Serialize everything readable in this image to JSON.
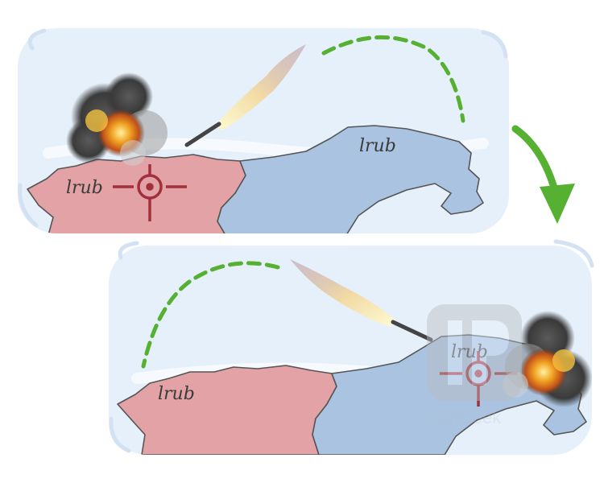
{
  "illustration": {
    "top_panel": {
      "left_country_label": "lrub",
      "right_country_label": "lrub"
    },
    "bottom_panel": {
      "left_country_label": "lrub",
      "right_country_label": "lrub"
    },
    "watermark": {
      "text": "LanGeek"
    },
    "colors": {
      "panel_bg": "#e6f0fa",
      "attacker_country": "#e3a3a6",
      "target_country": "#a9c3e1",
      "crosshair": "#a0303a",
      "trajectory": "#56b031",
      "transition_arrow": "#56b031",
      "border": "#555555"
    },
    "icons": [
      "missile-icon",
      "explosion-icon",
      "crosshair-icon",
      "curved-arrow-icon",
      "langeek-logo-icon"
    ]
  }
}
